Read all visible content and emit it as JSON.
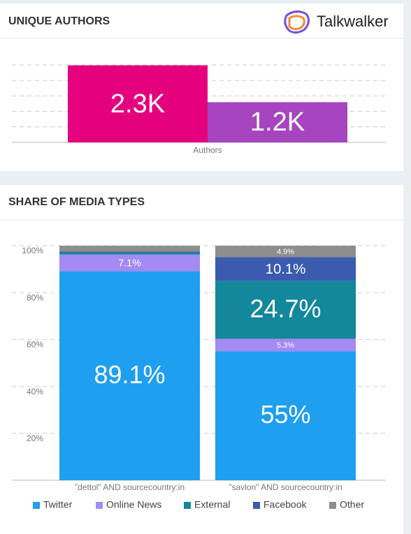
{
  "brand": "Talkwalker",
  "chart_data": [
    {
      "type": "bar",
      "title": "UNIQUE AUTHORS",
      "categories": [
        "Authors"
      ],
      "series": [
        {
          "color": "#e5007d",
          "values": [
            2300
          ],
          "value_labels": [
            "2.3K"
          ]
        },
        {
          "color": "#a745c0",
          "values": [
            1200
          ],
          "value_labels": [
            "1.2K"
          ]
        }
      ],
      "ylim": [
        0,
        2500
      ],
      "grid": true
    },
    {
      "type": "stacked_bar",
      "title": "SHARE OF MEDIA TYPES",
      "categories": [
        "\"dettol\" AND sourcecountry:in",
        "\"savlon\" AND sourcecountry:in"
      ],
      "series": [
        {
          "name": "Twitter",
          "color": "#1e9ff0",
          "values": [
            89.1,
            55
          ],
          "value_labels": [
            "89.1%",
            "55%"
          ]
        },
        {
          "name": "Online News",
          "color": "#a48af3",
          "values": [
            7.1,
            5.3
          ],
          "value_labels": [
            "7.1%",
            "5.3%"
          ]
        },
        {
          "name": "External",
          "color": "#13879c",
          "values": [
            0.8,
            24.7
          ],
          "value_labels": [
            null,
            "24.7%"
          ]
        },
        {
          "name": "Facebook",
          "color": "#3b5bae",
          "values": [
            0.5,
            10.1
          ],
          "value_labels": [
            null,
            "10.1%"
          ]
        },
        {
          "name": "Other",
          "color": "#8e8e8e",
          "values": [
            2.5,
            4.9
          ],
          "value_labels": [
            null,
            "4.9%"
          ]
        }
      ],
      "ylim": [
        0,
        100
      ],
      "yticks": [
        {
          "value": 20,
          "label": "20%"
        },
        {
          "value": 40,
          "label": "40%"
        },
        {
          "value": 60,
          "label": "60%"
        },
        {
          "value": 80,
          "label": "80%"
        },
        {
          "value": 100,
          "label": "100%"
        }
      ],
      "grid": true,
      "legend": "bottom"
    }
  ]
}
